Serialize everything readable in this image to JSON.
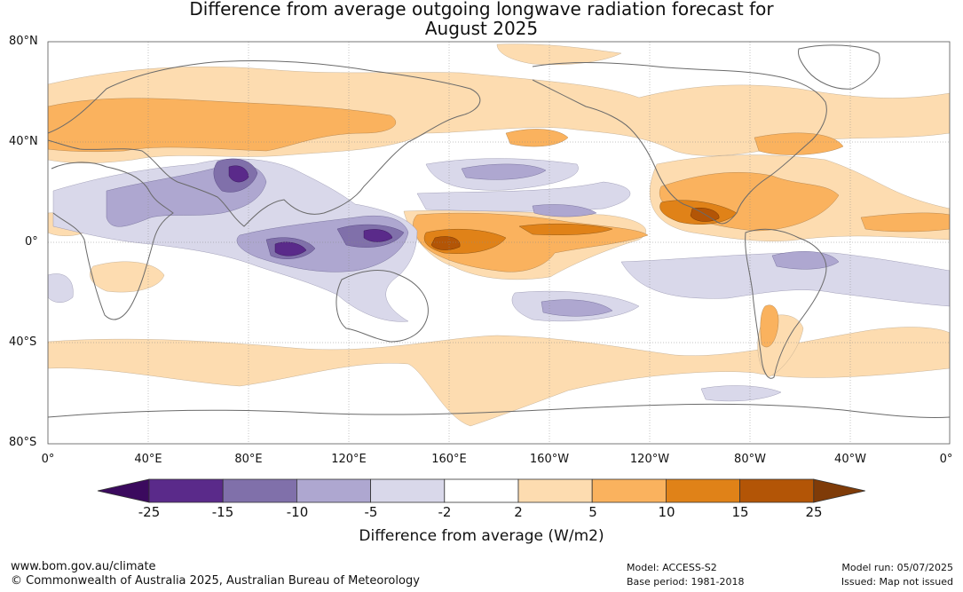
{
  "title": {
    "line1": "Difference from average outgoing longwave radiation forecast for",
    "line2": "August 2025"
  },
  "map": {
    "lat_labels": [
      "80°N",
      "40°N",
      "0°",
      "40°S",
      "80°S"
    ],
    "lon_labels": [
      "0°",
      "40°E",
      "80°E",
      "120°E",
      "160°E",
      "160°W",
      "120°W",
      "80°W",
      "40°W",
      "0°"
    ]
  },
  "colorbar": {
    "ticks": [
      "-25",
      "-15",
      "-10",
      "-5",
      "-2",
      "2",
      "5",
      "10",
      "15",
      "25"
    ],
    "label": "Difference from average (W/m2)",
    "colors": [
      "#3b0a5e",
      "#5a2a8a",
      "#8070aa",
      "#aea7d0",
      "#d9d8ea",
      "#ffffff",
      "#fddcb0",
      "#fab25e",
      "#e08218",
      "#b35506",
      "#7f3b08"
    ]
  },
  "footer": {
    "website": "www.bom.gov.au/climate",
    "copyright": "© Commonwealth of Australia 2025, Australian Bureau of Meteorology",
    "model": "Model: ACCESS-S2",
    "base_period": "Base period: 1981-2018",
    "model_run": "Model run: 05/07/2025",
    "issued": "Issued: Map not issued"
  }
}
